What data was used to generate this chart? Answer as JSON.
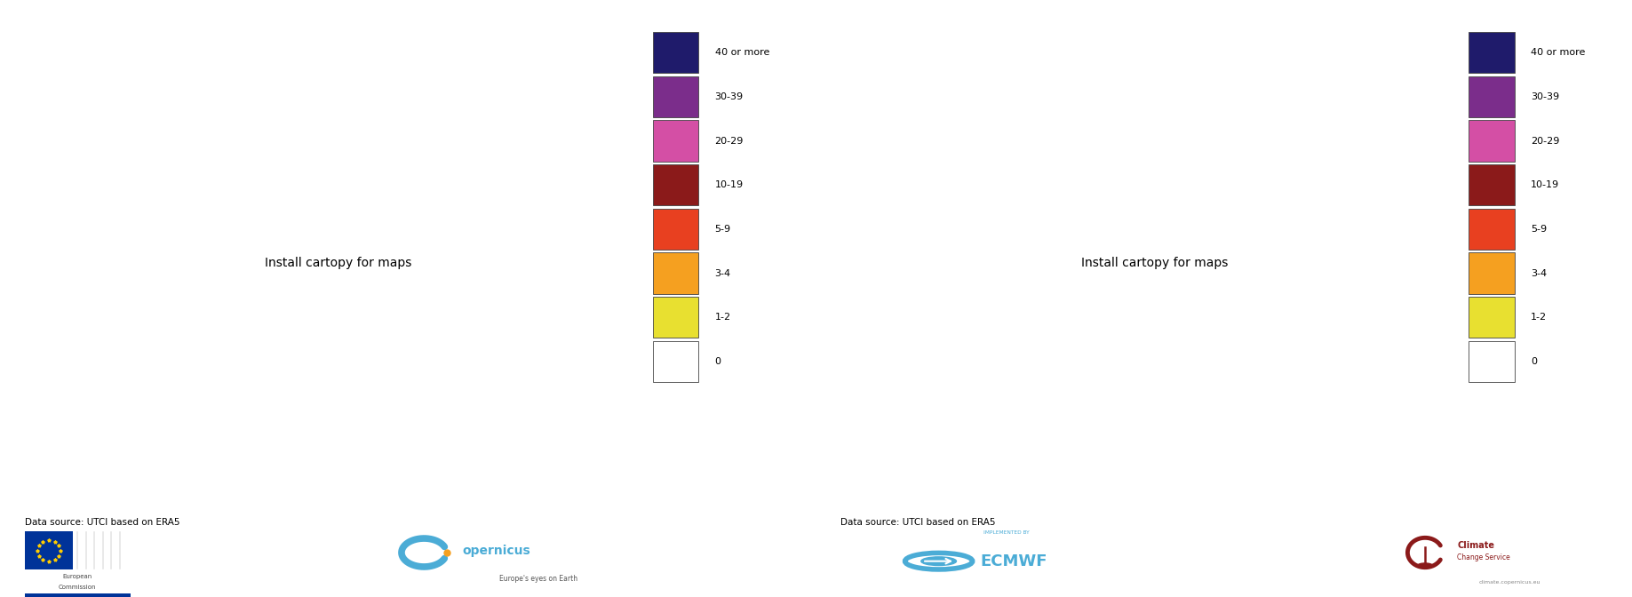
{
  "legend_labels": [
    "40 or more",
    "30-39",
    "20-29",
    "10-19",
    "5-9",
    "3-4",
    "1-2",
    "0"
  ],
  "legend_colors": [
    "#1f1b6b",
    "#7b2d8b",
    "#d44fa5",
    "#8b1a1a",
    "#e84020",
    "#f5a020",
    "#e8e030",
    "#ffffff"
  ],
  "data_source_text": "Data source: UTCI based on ERA5",
  "background_color": "#ffffff",
  "sea_color": "#b0b0b0",
  "land_color": "#ffffff",
  "outline_color": "#1a1a1a",
  "fig_width": 18.37,
  "fig_height": 6.72,
  "copernicus_color": "#4bacd6",
  "ecmwf_color": "#4bacd6",
  "ccs_color": "#8b1a1a",
  "implemented_by_text": "IMPLEMENTED BY",
  "copernicus_main": "opernicus",
  "copernicus_sub": "Europe's eyes on Earth",
  "ecmwf_main": "ECMWF",
  "ccs_main1": "Climate",
  "ccs_main2": "Change Service",
  "ccs_sub": "climate.copernicus.eu",
  "eu_text1": "European",
  "eu_text2": "Commission",
  "legend_box_edge": "#555555",
  "map_extent": [
    -12,
    42,
    34,
    72
  ],
  "left_map_title": "",
  "right_map_title": ""
}
